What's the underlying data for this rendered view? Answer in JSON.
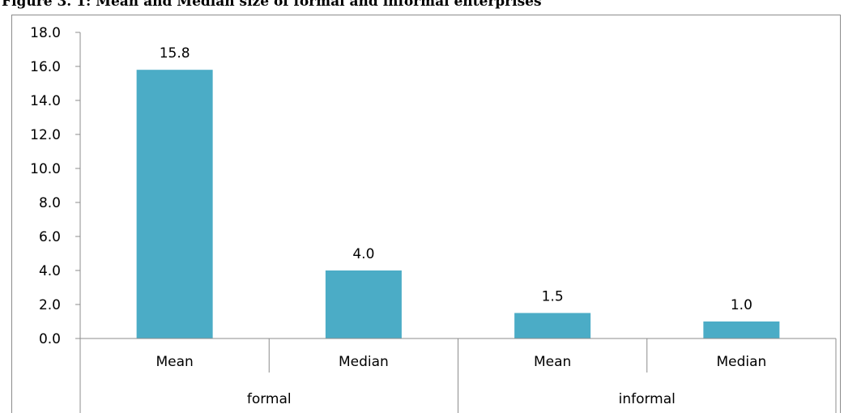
{
  "figure": {
    "title": "Figure 3. 1: Mean and Median size of formal and informal enterprises"
  },
  "chart_data": {
    "type": "bar",
    "title": "",
    "xlabel": "",
    "ylabel": "",
    "ylim": [
      0,
      18
    ],
    "ytick_step": 2,
    "yticks": [
      "0.0",
      "2.0",
      "4.0",
      "6.0",
      "8.0",
      "10.0",
      "12.0",
      "14.0",
      "16.0",
      "18.0"
    ],
    "grid": false,
    "legend": "none",
    "bar_color": "#4bacc6",
    "groups": [
      {
        "name": "formal",
        "categories": [
          "Mean",
          "Median"
        ],
        "values": [
          15.8,
          4.0
        ],
        "labels": [
          "15.8",
          "4.0"
        ]
      },
      {
        "name": "informal",
        "categories": [
          "Mean",
          "Median"
        ],
        "values": [
          1.5,
          1.0
        ],
        "labels": [
          "1.5",
          "1.0"
        ]
      }
    ]
  }
}
